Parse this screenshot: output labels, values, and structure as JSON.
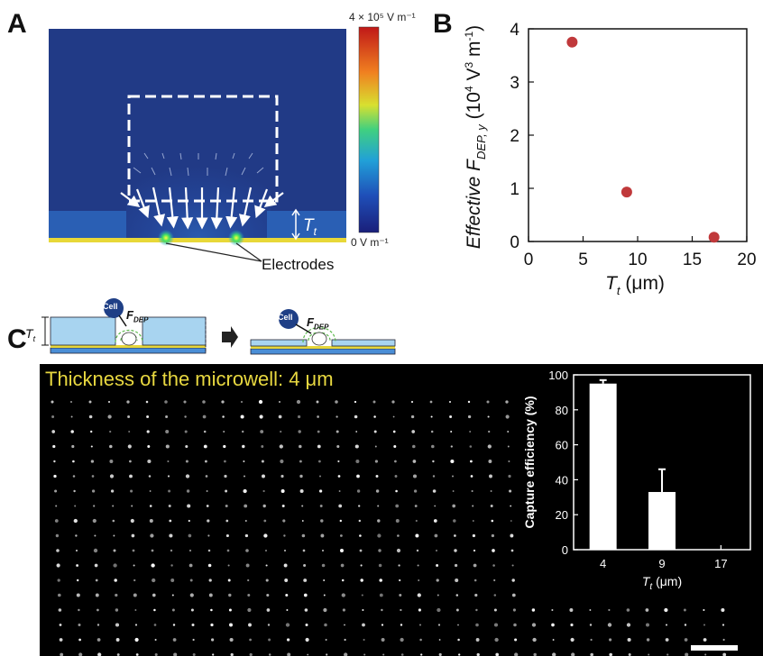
{
  "panels": {
    "a": {
      "label": "A",
      "colorbar_max": "4 × 10⁵ V m⁻¹",
      "colorbar_min": "0 V m⁻¹",
      "tt_label": "T",
      "tt_sub": "t",
      "electrodes_label": "Electrodes"
    },
    "b": {
      "label": "B"
    },
    "c": {
      "label": "C",
      "tt_label": "T",
      "tt_sub": "t",
      "cell_label": "Cell",
      "force_label": "F",
      "force_sub": "DEP",
      "micrograph_title": "Thickness of the microwell: 4 μm"
    }
  },
  "chart_data": [
    {
      "type": "scatter",
      "panel": "B",
      "x": [
        4,
        9,
        17
      ],
      "y": [
        3.75,
        0.93,
        0.08
      ],
      "xlabel": "T_t (μm)",
      "ylabel": "Effective F_DEP, y (10⁴ V³ m⁻¹)",
      "xlim": [
        0,
        20
      ],
      "ylim": [
        0,
        4
      ],
      "xticks": [
        0,
        5,
        10,
        15,
        20
      ],
      "yticks": [
        0,
        1,
        2,
        3,
        4
      ],
      "grid": false,
      "marker_color": "#c0393b"
    },
    {
      "type": "bar",
      "panel": "C inset",
      "categories": [
        "4",
        "9",
        "17"
      ],
      "values": [
        95,
        33,
        0
      ],
      "errors": [
        2,
        13,
        0
      ],
      "xlabel": "T_t (μm)",
      "ylabel": "Capture efficiency (%)",
      "ylim": [
        0,
        100
      ],
      "yticks": [
        0,
        20,
        40,
        60,
        80,
        100
      ],
      "bar_color": "#ffffff"
    }
  ]
}
